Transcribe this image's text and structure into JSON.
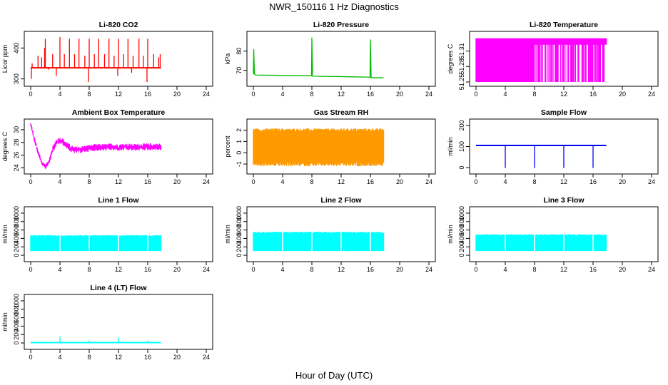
{
  "figure": {
    "title": "NWR_150116  1 Hz Diagnostics",
    "xlabel": "Hour of Day (UTC)"
  },
  "chart_data": [
    {
      "type": "line",
      "title": "Li-820 CO2",
      "ylabel": "Licor ppm",
      "color": "#ff0000",
      "xlim": [
        0,
        24
      ],
      "ylim": [
        290,
        440
      ],
      "xticks": [
        0,
        4,
        8,
        12,
        16,
        20,
        24
      ],
      "yticks": [
        300,
        400
      ],
      "x_extent": [
        0,
        17.8
      ],
      "series": [
        {
          "baseline": 336,
          "spikes": [
            [
              0.1,
              300
            ],
            [
              0.2,
              350
            ],
            [
              1.0,
              375
            ],
            [
              1.5,
              370
            ],
            [
              1.9,
              400
            ],
            [
              2.0,
              430
            ],
            [
              2.4,
              330
            ],
            [
              3.0,
              380
            ],
            [
              3.5,
              310
            ],
            [
              4.0,
              435
            ],
            [
              4.6,
              380
            ],
            [
              5.3,
              430
            ],
            [
              6.0,
              380
            ],
            [
              6.6,
              430
            ],
            [
              7.4,
              375
            ],
            [
              7.9,
              290
            ],
            [
              8.0,
              430
            ],
            [
              8.7,
              380
            ],
            [
              9.3,
              430
            ],
            [
              10.1,
              380
            ],
            [
              10.7,
              430
            ],
            [
              11.4,
              375
            ],
            [
              11.9,
              310
            ],
            [
              12.0,
              430
            ],
            [
              12.7,
              380
            ],
            [
              13.3,
              430
            ],
            [
              13.8,
              320
            ],
            [
              14.0,
              375
            ],
            [
              14.8,
              430
            ],
            [
              15.4,
              375
            ],
            [
              15.9,
              290
            ],
            [
              16.0,
              430
            ],
            [
              16.8,
              380
            ],
            [
              17.5,
              370
            ],
            [
              17.7,
              380
            ]
          ]
        }
      ]
    },
    {
      "type": "line",
      "title": "Li-820 Pressure",
      "ylabel": "kPa",
      "color": "#00bb00",
      "xlim": [
        0,
        24
      ],
      "ylim": [
        64,
        88
      ],
      "xticks": [
        0,
        4,
        8,
        12,
        16,
        20,
        24
      ],
      "yticks": [
        70,
        80
      ],
      "series": [
        {
          "x": [
            0,
            0.05,
            0.15,
            0.3,
            7.95,
            8.0,
            8.1,
            12.0,
            15.95,
            16.0,
            16.1,
            17.8
          ],
          "y": [
            68,
            81,
            68,
            67.6,
            67.2,
            87,
            67,
            66.8,
            66.5,
            86,
            66.2,
            66.2
          ]
        }
      ]
    },
    {
      "type": "area",
      "title": "Li-820 Temperature",
      "ylabel": "degrees C",
      "color": "#ff00ff",
      "xlim": [
        0,
        24
      ],
      "ylim": [
        51.25,
        51.34
      ],
      "xticks": [
        0,
        4,
        8,
        12,
        16,
        20,
        24
      ],
      "yticks": [
        51.25,
        51.28,
        51.31
      ],
      "x_extent": [
        0,
        17.8
      ],
      "series": [
        {
          "low": 51.25,
          "high": 51.335,
          "floor_until": 7.9
        }
      ]
    },
    {
      "type": "line",
      "title": "Ambient Box Temperature",
      "ylabel": "degrees C",
      "color": "#ff00ff",
      "xlim": [
        0,
        24
      ],
      "ylim": [
        23.7,
        31
      ],
      "xticks": [
        0,
        4,
        8,
        12,
        16,
        20,
        24
      ],
      "yticks": [
        24,
        26,
        28,
        30
      ],
      "series": [
        {
          "x": [
            0,
            0.2,
            0.5,
            1.0,
            1.5,
            2.0,
            2.5,
            3.0,
            3.5,
            4.0,
            4.5,
            5.0,
            5.5,
            6.0,
            7.0,
            8.0,
            9.0,
            10.0,
            11.0,
            12.0,
            13.0,
            14.0,
            15.0,
            16.0,
            17.0,
            17.8
          ],
          "y": [
            30.8,
            30.0,
            28.5,
            26.5,
            24.8,
            24.2,
            24.9,
            26.8,
            28.0,
            28.3,
            28.0,
            27.5,
            27.0,
            26.8,
            26.9,
            27.1,
            27.2,
            27.2,
            27.3,
            27.2,
            27.3,
            27.2,
            27.3,
            27.3,
            27.3,
            27.3
          ],
          "band": 1.1
        }
      ]
    },
    {
      "type": "area",
      "title": "Gas Stream RH",
      "ylabel": "percent",
      "color": "#ff9900",
      "xlim": [
        0,
        24
      ],
      "ylim": [
        -1.5,
        2.6
      ],
      "xticks": [
        0,
        4,
        8,
        12,
        16,
        20,
        24
      ],
      "yticks": [
        -1,
        0,
        1,
        2
      ],
      "x_extent": [
        0,
        17.8
      ],
      "series": [
        {
          "low": -0.8,
          "high": 2.0
        }
      ]
    },
    {
      "type": "line",
      "title": "Sample Flow",
      "ylabel": "ml/min",
      "color": "#0000ff",
      "xlim": [
        0,
        24
      ],
      "ylim": [
        -10,
        210
      ],
      "xticks": [
        0,
        4,
        8,
        12,
        16,
        20,
        24
      ],
      "yticks": [
        0,
        100,
        200
      ],
      "series": [
        {
          "baseline": 105,
          "dips": [
            [
              4.0,
              -2
            ],
            [
              8.0,
              -2
            ],
            [
              12.0,
              -2
            ],
            [
              16.0,
              -2
            ]
          ]
        }
      ]
    },
    {
      "type": "area",
      "title": "Line 1 Flow",
      "ylabel": "ml/min",
      "color": "#00ffff",
      "xlim": [
        0,
        24
      ],
      "ylim": [
        -50,
        1050
      ],
      "xticks": [
        0,
        4,
        8,
        12,
        16,
        20,
        24
      ],
      "yticks": [
        0,
        200,
        400,
        600,
        800,
        1000
      ],
      "x_extent": [
        0,
        17.8
      ],
      "series": [
        {
          "low": 100,
          "high": 480,
          "gaps": [
            4.0,
            8.0,
            12.0,
            16.0
          ]
        }
      ]
    },
    {
      "type": "area",
      "title": "Line 2 Flow",
      "ylabel": "ml/min",
      "color": "#00ffff",
      "xlim": [
        0,
        24
      ],
      "ylim": [
        -50,
        1050
      ],
      "xticks": [
        0,
        4,
        8,
        12,
        16,
        20,
        24
      ],
      "yticks": [
        0,
        200,
        400,
        600,
        800,
        1000
      ],
      "x_extent": [
        0,
        17.8
      ],
      "series": [
        {
          "low": 100,
          "high": 560,
          "gaps": [
            4.0,
            8.0,
            12.0,
            16.0
          ]
        }
      ]
    },
    {
      "type": "area",
      "title": "Line 3 Flow",
      "ylabel": "ml/min",
      "color": "#00ffff",
      "xlim": [
        0,
        24
      ],
      "ylim": [
        -50,
        1050
      ],
      "xticks": [
        0,
        4,
        8,
        12,
        16,
        20,
        24
      ],
      "yticks": [
        0,
        200,
        400,
        600,
        800,
        1000
      ],
      "x_extent": [
        0,
        17.8
      ],
      "series": [
        {
          "low": 100,
          "high": 500,
          "gaps": [
            4.0,
            8.0,
            12.0,
            16.0
          ]
        }
      ]
    },
    {
      "type": "line",
      "title": "Line 4 (LT) Flow",
      "ylabel": "ml/min",
      "color": "#00ffff",
      "xlim": [
        0,
        24
      ],
      "ylim": [
        -50,
        1050
      ],
      "xticks": [
        0,
        4,
        8,
        12,
        16,
        20,
        24
      ],
      "yticks": [
        0,
        200,
        400,
        600,
        800,
        1000
      ],
      "series": [
        {
          "baseline": 10,
          "spikes": [
            [
              4.0,
              160
            ],
            [
              8.0,
              60
            ],
            [
              12.0,
              140
            ],
            [
              16.0,
              60
            ]
          ]
        }
      ]
    }
  ]
}
